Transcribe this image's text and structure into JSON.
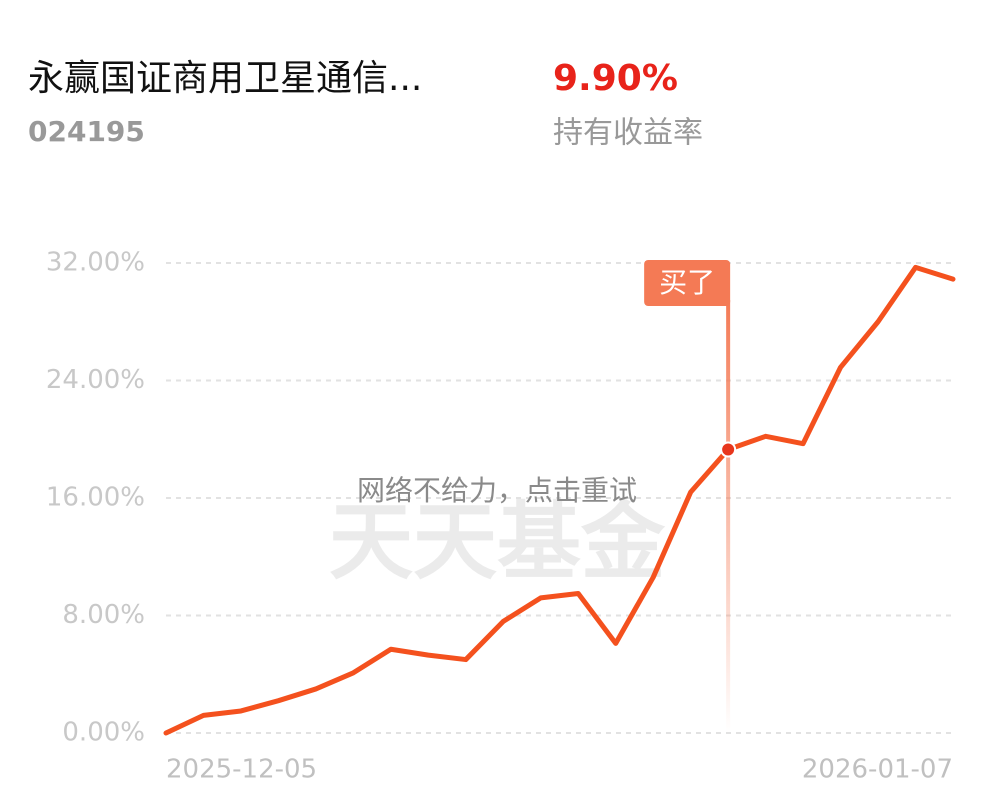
{
  "header": {
    "title": "永赢国证商用卫星通信...",
    "code": "024195",
    "return": "9.90%",
    "return_label": "持有收益率"
  },
  "chart_data": {
    "type": "line",
    "categories": [
      "2025-12-05",
      null,
      null,
      null,
      null,
      null,
      null,
      null,
      null,
      null,
      null,
      null,
      null,
      null,
      null,
      null,
      null,
      null,
      null,
      null,
      null,
      "2026-01-07"
    ],
    "values": [
      0,
      1.2,
      1.5,
      2.2,
      3.0,
      4.1,
      5.7,
      5.3,
      5.0,
      7.6,
      9.2,
      9.5,
      6.1,
      10.6,
      16.4,
      19.3,
      20.2,
      19.7,
      24.9,
      28.0,
      31.7,
      30.9
    ],
    "color": "#f4511e",
    "ylim": [
      0,
      32
    ],
    "yticks": [
      {
        "value": 0,
        "label": "0.00%"
      },
      {
        "value": 8,
        "label": "8.00%"
      },
      {
        "value": 16,
        "label": "16.00%"
      },
      {
        "value": 24,
        "label": "24.00%"
      },
      {
        "value": 32,
        "label": "32.00%"
      }
    ],
    "grid": true,
    "buy_label": "买了",
    "overlay": "网络不给力，点击重试",
    "watermark": "天天基金"
  }
}
